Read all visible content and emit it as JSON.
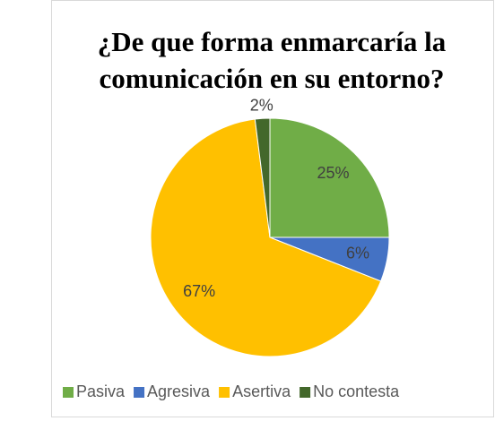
{
  "chart_data": {
    "type": "pie",
    "title": [
      "¿De que forma enmarcaría la",
      "comunicación en su entorno?"
    ],
    "categories": [
      "Pasiva",
      "Agresiva",
      "Asertiva",
      "No contesta"
    ],
    "values": [
      25,
      6,
      67,
      2
    ],
    "value_labels": [
      "25%",
      "6%",
      "67%",
      "2%"
    ],
    "colors": [
      "#70ad47",
      "#4472c4",
      "#ffc000",
      "#43682b"
    ],
    "legend": "bottom"
  }
}
